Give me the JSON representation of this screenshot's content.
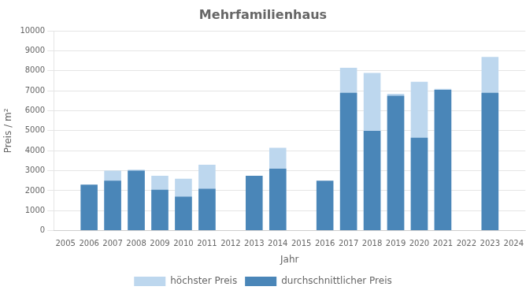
{
  "chart_data": {
    "type": "bar",
    "title": "Mehrfamilienhaus",
    "x_label": "Jahr",
    "y_label": "Preis / m²",
    "categories": [
      2005,
      2006,
      2007,
      2008,
      2009,
      2010,
      2011,
      2012,
      2013,
      2014,
      2015,
      2016,
      2017,
      2018,
      2019,
      2020,
      2021,
      2022,
      2023,
      2024
    ],
    "series": [
      {
        "name": "höchster Preis",
        "color": "#bdd7ee",
        "values": [
          0,
          0,
          3000,
          3050,
          2750,
          2600,
          3300,
          0,
          0,
          4150,
          0,
          0,
          8150,
          7900,
          6850,
          7450,
          7100,
          0,
          8700,
          0
        ]
      },
      {
        "name": "durchschnittlicher Preis",
        "color": "#4a86b8",
        "values": [
          0,
          2300,
          2500,
          3000,
          2050,
          1700,
          2100,
          0,
          2750,
          3100,
          0,
          2500,
          6900,
          5000,
          6750,
          4650,
          7050,
          0,
          6900,
          0
        ]
      }
    ],
    "ylim": [
      0,
      10000
    ],
    "yticks": [
      0,
      1000,
      2000,
      3000,
      4000,
      5000,
      6000,
      7000,
      8000,
      9000,
      10000
    ],
    "grid": true,
    "legend": "bottom"
  }
}
